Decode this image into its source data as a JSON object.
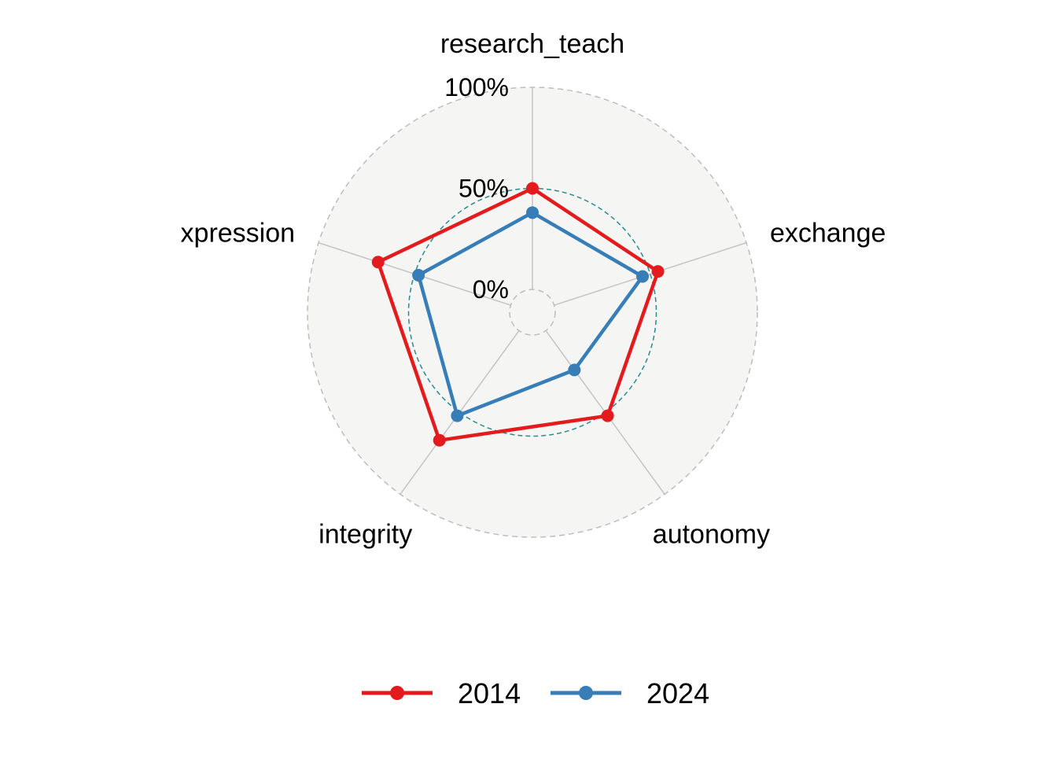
{
  "chart_data": {
    "type": "radar",
    "title": "",
    "axes": [
      "research_teach",
      "exchange",
      "autonomy",
      "integrity",
      "xpression"
    ],
    "ticks": [
      "0%",
      "50%",
      "100%"
    ],
    "tick_values": [
      0,
      0.5,
      1
    ],
    "range": [
      0,
      1
    ],
    "grid": true,
    "legend_position": "bottom",
    "series": [
      {
        "name": "2014",
        "color": "#e41a1c",
        "values": [
          0.5,
          0.54,
          0.52,
          0.67,
          0.69
        ]
      },
      {
        "name": "2024",
        "color": "#377eb8",
        "values": [
          0.38,
          0.46,
          0.24,
          0.52,
          0.48
        ]
      }
    ],
    "colors": {
      "panel_fill": "#f5f5f3",
      "outer_grid": "#bdbdbd",
      "mid_grid": "#2b8a8f",
      "spokes": "#c4c4c4"
    }
  }
}
